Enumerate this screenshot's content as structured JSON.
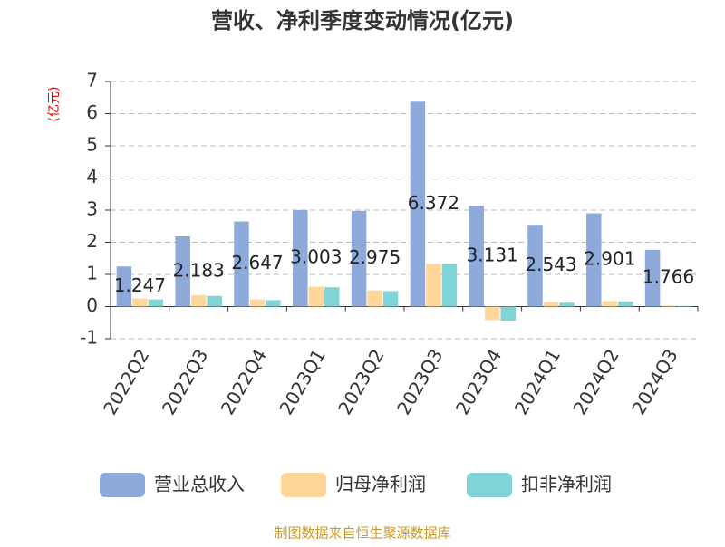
{
  "chart_data": {
    "type": "bar",
    "title": "营收、净利季度变动情况(亿元)",
    "y_unit": "(亿元)",
    "categories": [
      "2022Q2",
      "2022Q3",
      "2022Q4",
      "2023Q1",
      "2023Q2",
      "2023Q3",
      "2023Q4",
      "2024Q1",
      "2024Q2",
      "2024Q3"
    ],
    "series": [
      {
        "name": "营业总收入",
        "color": "#8eaadb",
        "values": [
          1.247,
          2.183,
          2.647,
          3.003,
          2.975,
          6.372,
          3.131,
          2.543,
          2.901,
          1.766
        ]
      },
      {
        "name": "归母净利润",
        "color": "#ffd899",
        "values": [
          0.25,
          0.35,
          0.22,
          0.62,
          0.5,
          1.33,
          -0.42,
          0.14,
          0.17,
          0.03
        ]
      },
      {
        "name": "扣非净利润",
        "color": "#80d4d6",
        "values": [
          0.22,
          0.33,
          0.2,
          0.6,
          0.48,
          1.31,
          -0.44,
          0.12,
          0.16,
          0.02
        ]
      }
    ],
    "ylim": [
      -1,
      7
    ],
    "yticks": [
      -1,
      0,
      1,
      2,
      3,
      4,
      5,
      6,
      7
    ],
    "grid": true,
    "source": "制图数据来自恒生聚源数据库"
  }
}
